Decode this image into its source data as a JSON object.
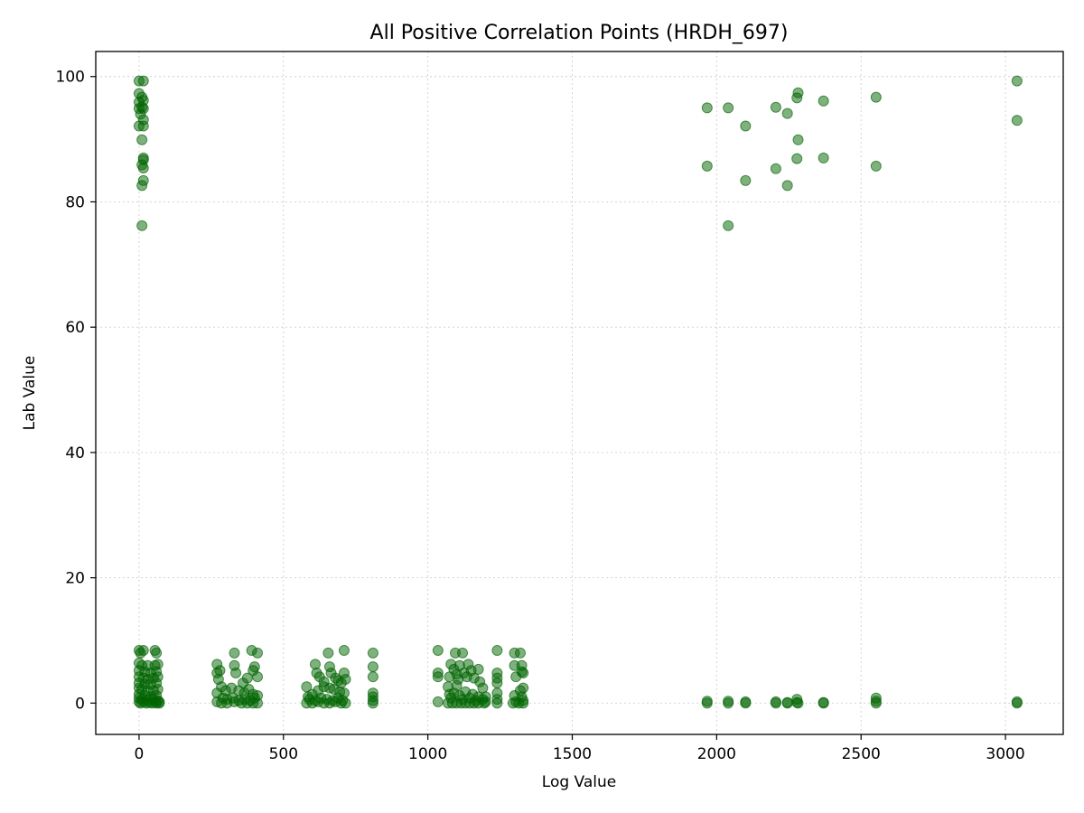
{
  "chart_data": {
    "type": "scatter",
    "title": "All Positive Correlation Points (HRDH_697)",
    "xlabel": "Log Value",
    "ylabel": "Lab Value",
    "xlim": [
      -150,
      3200
    ],
    "ylim": [
      -5,
      104
    ],
    "xticks": [
      0,
      500,
      1000,
      1500,
      2000,
      2500,
      3000
    ],
    "yticks": [
      0,
      20,
      40,
      60,
      80,
      100
    ],
    "grid": true,
    "marker_color": "#006400",
    "marker_alpha": 0.5,
    "series": [
      {
        "points": [
          [
            0,
            99.3
          ],
          [
            15,
            99.3
          ],
          [
            0,
            97.3
          ],
          [
            10,
            96.7
          ],
          [
            15,
            96.2
          ],
          [
            0,
            95.9
          ],
          [
            10,
            95.1
          ],
          [
            15,
            94.9
          ],
          [
            0,
            94.9
          ],
          [
            5,
            94.0
          ],
          [
            15,
            93.1
          ],
          [
            15,
            92.1
          ],
          [
            0,
            92.1
          ],
          [
            10,
            89.9
          ],
          [
            15,
            87.0
          ],
          [
            15,
            86.7
          ],
          [
            10,
            85.9
          ],
          [
            15,
            85.4
          ],
          [
            15,
            83.4
          ],
          [
            10,
            82.6
          ],
          [
            10,
            76.2
          ],
          [
            1967,
            95.0
          ],
          [
            2040,
            95.0
          ],
          [
            2100,
            92.1
          ],
          [
            2205,
            95.1
          ],
          [
            2245,
            94.1
          ],
          [
            2278,
            96.6
          ],
          [
            2282,
            97.4
          ],
          [
            2370,
            96.1
          ],
          [
            2552,
            96.7
          ],
          [
            3040,
            99.3
          ],
          [
            3040,
            93.0
          ],
          [
            1967,
            85.7
          ],
          [
            2100,
            83.4
          ],
          [
            2205,
            85.3
          ],
          [
            2245,
            82.6
          ],
          [
            2278,
            86.9
          ],
          [
            2282,
            89.9
          ],
          [
            2370,
            87.0
          ],
          [
            2552,
            85.7
          ],
          [
            2040,
            76.2
          ],
          [
            0,
            8.4
          ],
          [
            5,
            8.0
          ],
          [
            15,
            8.4
          ],
          [
            55,
            8.4
          ],
          [
            60,
            8.0
          ],
          [
            0,
            6.4
          ],
          [
            10,
            6.0
          ],
          [
            30,
            6.0
          ],
          [
            55,
            6.0
          ],
          [
            65,
            6.2
          ],
          [
            0,
            5.2
          ],
          [
            20,
            5.0
          ],
          [
            40,
            4.8
          ],
          [
            60,
            5.0
          ],
          [
            0,
            4.2
          ],
          [
            15,
            4.0
          ],
          [
            30,
            3.8
          ],
          [
            50,
            4.0
          ],
          [
            65,
            4.2
          ],
          [
            0,
            3.2
          ],
          [
            20,
            3.0
          ],
          [
            40,
            3.0
          ],
          [
            60,
            3.2
          ],
          [
            0,
            2.4
          ],
          [
            10,
            2.2
          ],
          [
            30,
            2.0
          ],
          [
            50,
            2.0
          ],
          [
            65,
            2.2
          ],
          [
            0,
            1.4
          ],
          [
            20,
            1.2
          ],
          [
            40,
            1.0
          ],
          [
            60,
            1.2
          ],
          [
            0,
            0.8
          ],
          [
            10,
            0.6
          ],
          [
            30,
            0.5
          ],
          [
            50,
            0.6
          ],
          [
            65,
            0.4
          ],
          [
            0,
            0.2
          ],
          [
            15,
            0.2
          ],
          [
            35,
            0.1
          ],
          [
            55,
            0.2
          ],
          [
            70,
            0.2
          ],
          [
            5,
            0
          ],
          [
            25,
            0
          ],
          [
            45,
            0
          ],
          [
            60,
            0
          ],
          [
            70,
            0
          ],
          [
            270,
            6.2
          ],
          [
            280,
            5.2
          ],
          [
            330,
            8.0
          ],
          [
            330,
            6.0
          ],
          [
            335,
            4.8
          ],
          [
            360,
            3.2
          ],
          [
            375,
            4.0
          ],
          [
            390,
            8.4
          ],
          [
            395,
            5.2
          ],
          [
            400,
            5.8
          ],
          [
            410,
            8.0
          ],
          [
            410,
            4.2
          ],
          [
            270,
            4.8
          ],
          [
            275,
            3.8
          ],
          [
            285,
            2.6
          ],
          [
            300,
            2.0
          ],
          [
            320,
            2.4
          ],
          [
            345,
            2.0
          ],
          [
            365,
            1.6
          ],
          [
            380,
            2.2
          ],
          [
            395,
            1.4
          ],
          [
            410,
            1.2
          ],
          [
            270,
            1.6
          ],
          [
            290,
            0.8
          ],
          [
            305,
            0.6
          ],
          [
            325,
            0.8
          ],
          [
            345,
            0.4
          ],
          [
            365,
            0.6
          ],
          [
            385,
            0.4
          ],
          [
            400,
            0.8
          ],
          [
            270,
            0.2
          ],
          [
            285,
            0
          ],
          [
            305,
            0
          ],
          [
            330,
            0.2
          ],
          [
            355,
            0
          ],
          [
            375,
            0
          ],
          [
            395,
            0
          ],
          [
            410,
            0
          ],
          [
            580,
            2.6
          ],
          [
            610,
            6.2
          ],
          [
            615,
            4.8
          ],
          [
            625,
            4.2
          ],
          [
            640,
            3.4
          ],
          [
            655,
            8.0
          ],
          [
            660,
            5.8
          ],
          [
            665,
            4.8
          ],
          [
            680,
            4.0
          ],
          [
            690,
            3.6
          ],
          [
            700,
            3.2
          ],
          [
            710,
            8.4
          ],
          [
            710,
            4.8
          ],
          [
            715,
            3.8
          ],
          [
            585,
            1.0
          ],
          [
            600,
            1.4
          ],
          [
            620,
            2.0
          ],
          [
            640,
            2.6
          ],
          [
            660,
            2.4
          ],
          [
            675,
            2.2
          ],
          [
            695,
            1.8
          ],
          [
            710,
            1.6
          ],
          [
            590,
            0.6
          ],
          [
            610,
            0.4
          ],
          [
            630,
            0.8
          ],
          [
            650,
            0.6
          ],
          [
            670,
            0.4
          ],
          [
            690,
            0.8
          ],
          [
            705,
            0.4
          ],
          [
            580,
            0
          ],
          [
            600,
            0
          ],
          [
            620,
            0.2
          ],
          [
            640,
            0
          ],
          [
            660,
            0
          ],
          [
            680,
            0.2
          ],
          [
            700,
            0
          ],
          [
            715,
            0
          ],
          [
            810,
            8.0
          ],
          [
            810,
            5.8
          ],
          [
            810,
            4.2
          ],
          [
            810,
            1.6
          ],
          [
            810,
            1.0
          ],
          [
            810,
            0.4
          ],
          [
            810,
            0
          ],
          [
            1035,
            8.4
          ],
          [
            1035,
            4.8
          ],
          [
            1035,
            4.2
          ],
          [
            1075,
            4.2
          ],
          [
            1080,
            6.2
          ],
          [
            1090,
            5.4
          ],
          [
            1095,
            8.0
          ],
          [
            1100,
            4.6
          ],
          [
            1105,
            3.8
          ],
          [
            1110,
            6.0
          ],
          [
            1120,
            8.0
          ],
          [
            1125,
            4.8
          ],
          [
            1135,
            4.2
          ],
          [
            1140,
            6.2
          ],
          [
            1150,
            5.2
          ],
          [
            1160,
            4.0
          ],
          [
            1175,
            5.4
          ],
          [
            1180,
            3.4
          ],
          [
            1190,
            2.4
          ],
          [
            1240,
            8.4
          ],
          [
            1240,
            4.8
          ],
          [
            1240,
            4.0
          ],
          [
            1240,
            3.2
          ],
          [
            1300,
            8.0
          ],
          [
            1300,
            6.0
          ],
          [
            1305,
            4.2
          ],
          [
            1320,
            8.0
          ],
          [
            1325,
            6.0
          ],
          [
            1325,
            5.0
          ],
          [
            1330,
            4.8
          ],
          [
            1330,
            2.4
          ],
          [
            1035,
            0.2
          ],
          [
            1070,
            2.6
          ],
          [
            1075,
            1.4
          ],
          [
            1080,
            0.8
          ],
          [
            1090,
            1.6
          ],
          [
            1100,
            2.8
          ],
          [
            1110,
            1.2
          ],
          [
            1120,
            0.6
          ],
          [
            1130,
            1.8
          ],
          [
            1145,
            0.8
          ],
          [
            1155,
            1.4
          ],
          [
            1165,
            0.4
          ],
          [
            1175,
            1.0
          ],
          [
            1190,
            0.6
          ],
          [
            1200,
            1.0
          ],
          [
            1200,
            0.2
          ],
          [
            1240,
            1.6
          ],
          [
            1240,
            0.6
          ],
          [
            1300,
            1.2
          ],
          [
            1305,
            0.2
          ],
          [
            1320,
            2.0
          ],
          [
            1325,
            1.0
          ],
          [
            1330,
            0.4
          ],
          [
            1070,
            0
          ],
          [
            1085,
            0
          ],
          [
            1100,
            0
          ],
          [
            1115,
            0
          ],
          [
            1130,
            0
          ],
          [
            1145,
            0
          ],
          [
            1160,
            0
          ],
          [
            1175,
            0
          ],
          [
            1195,
            0
          ],
          [
            1240,
            0
          ],
          [
            1295,
            0
          ],
          [
            1315,
            0
          ],
          [
            1330,
            0
          ],
          [
            1967,
            0.3
          ],
          [
            1967,
            0
          ],
          [
            2040,
            0.3
          ],
          [
            2040,
            0
          ],
          [
            2100,
            0.2
          ],
          [
            2100,
            0
          ],
          [
            2205,
            0.2
          ],
          [
            2205,
            0
          ],
          [
            2245,
            0.1
          ],
          [
            2245,
            0
          ],
          [
            2278,
            0.6
          ],
          [
            2278,
            0.1
          ],
          [
            2282,
            0
          ],
          [
            2370,
            0.1
          ],
          [
            2370,
            0
          ],
          [
            2552,
            0.8
          ],
          [
            2552,
            0.3
          ],
          [
            2552,
            0
          ],
          [
            3040,
            0.2
          ],
          [
            3040,
            0
          ]
        ]
      }
    ]
  }
}
